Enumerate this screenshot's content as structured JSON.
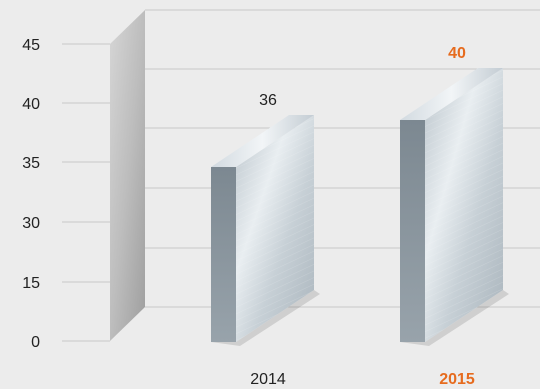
{
  "chart_data": {
    "type": "bar",
    "categories": [
      "2014",
      "2015"
    ],
    "values": [
      36,
      40
    ],
    "value_labels": [
      "36",
      "40"
    ],
    "highlight_category": "2015",
    "y_ticks": [
      "0",
      "15",
      "30",
      "35",
      "40",
      "45"
    ],
    "title": "",
    "xlabel": "",
    "ylabel": "",
    "grid": true,
    "legend": "none",
    "colors": {
      "background": "#ececec",
      "gridline": "#c9c9c9",
      "highlight": "#e66b1e",
      "text": "#222222",
      "bar_face": "#c7d0d6",
      "bar_side": "#8e99a2",
      "bar_top": "#dfe5ea",
      "wall": "#bdbdbd"
    }
  }
}
